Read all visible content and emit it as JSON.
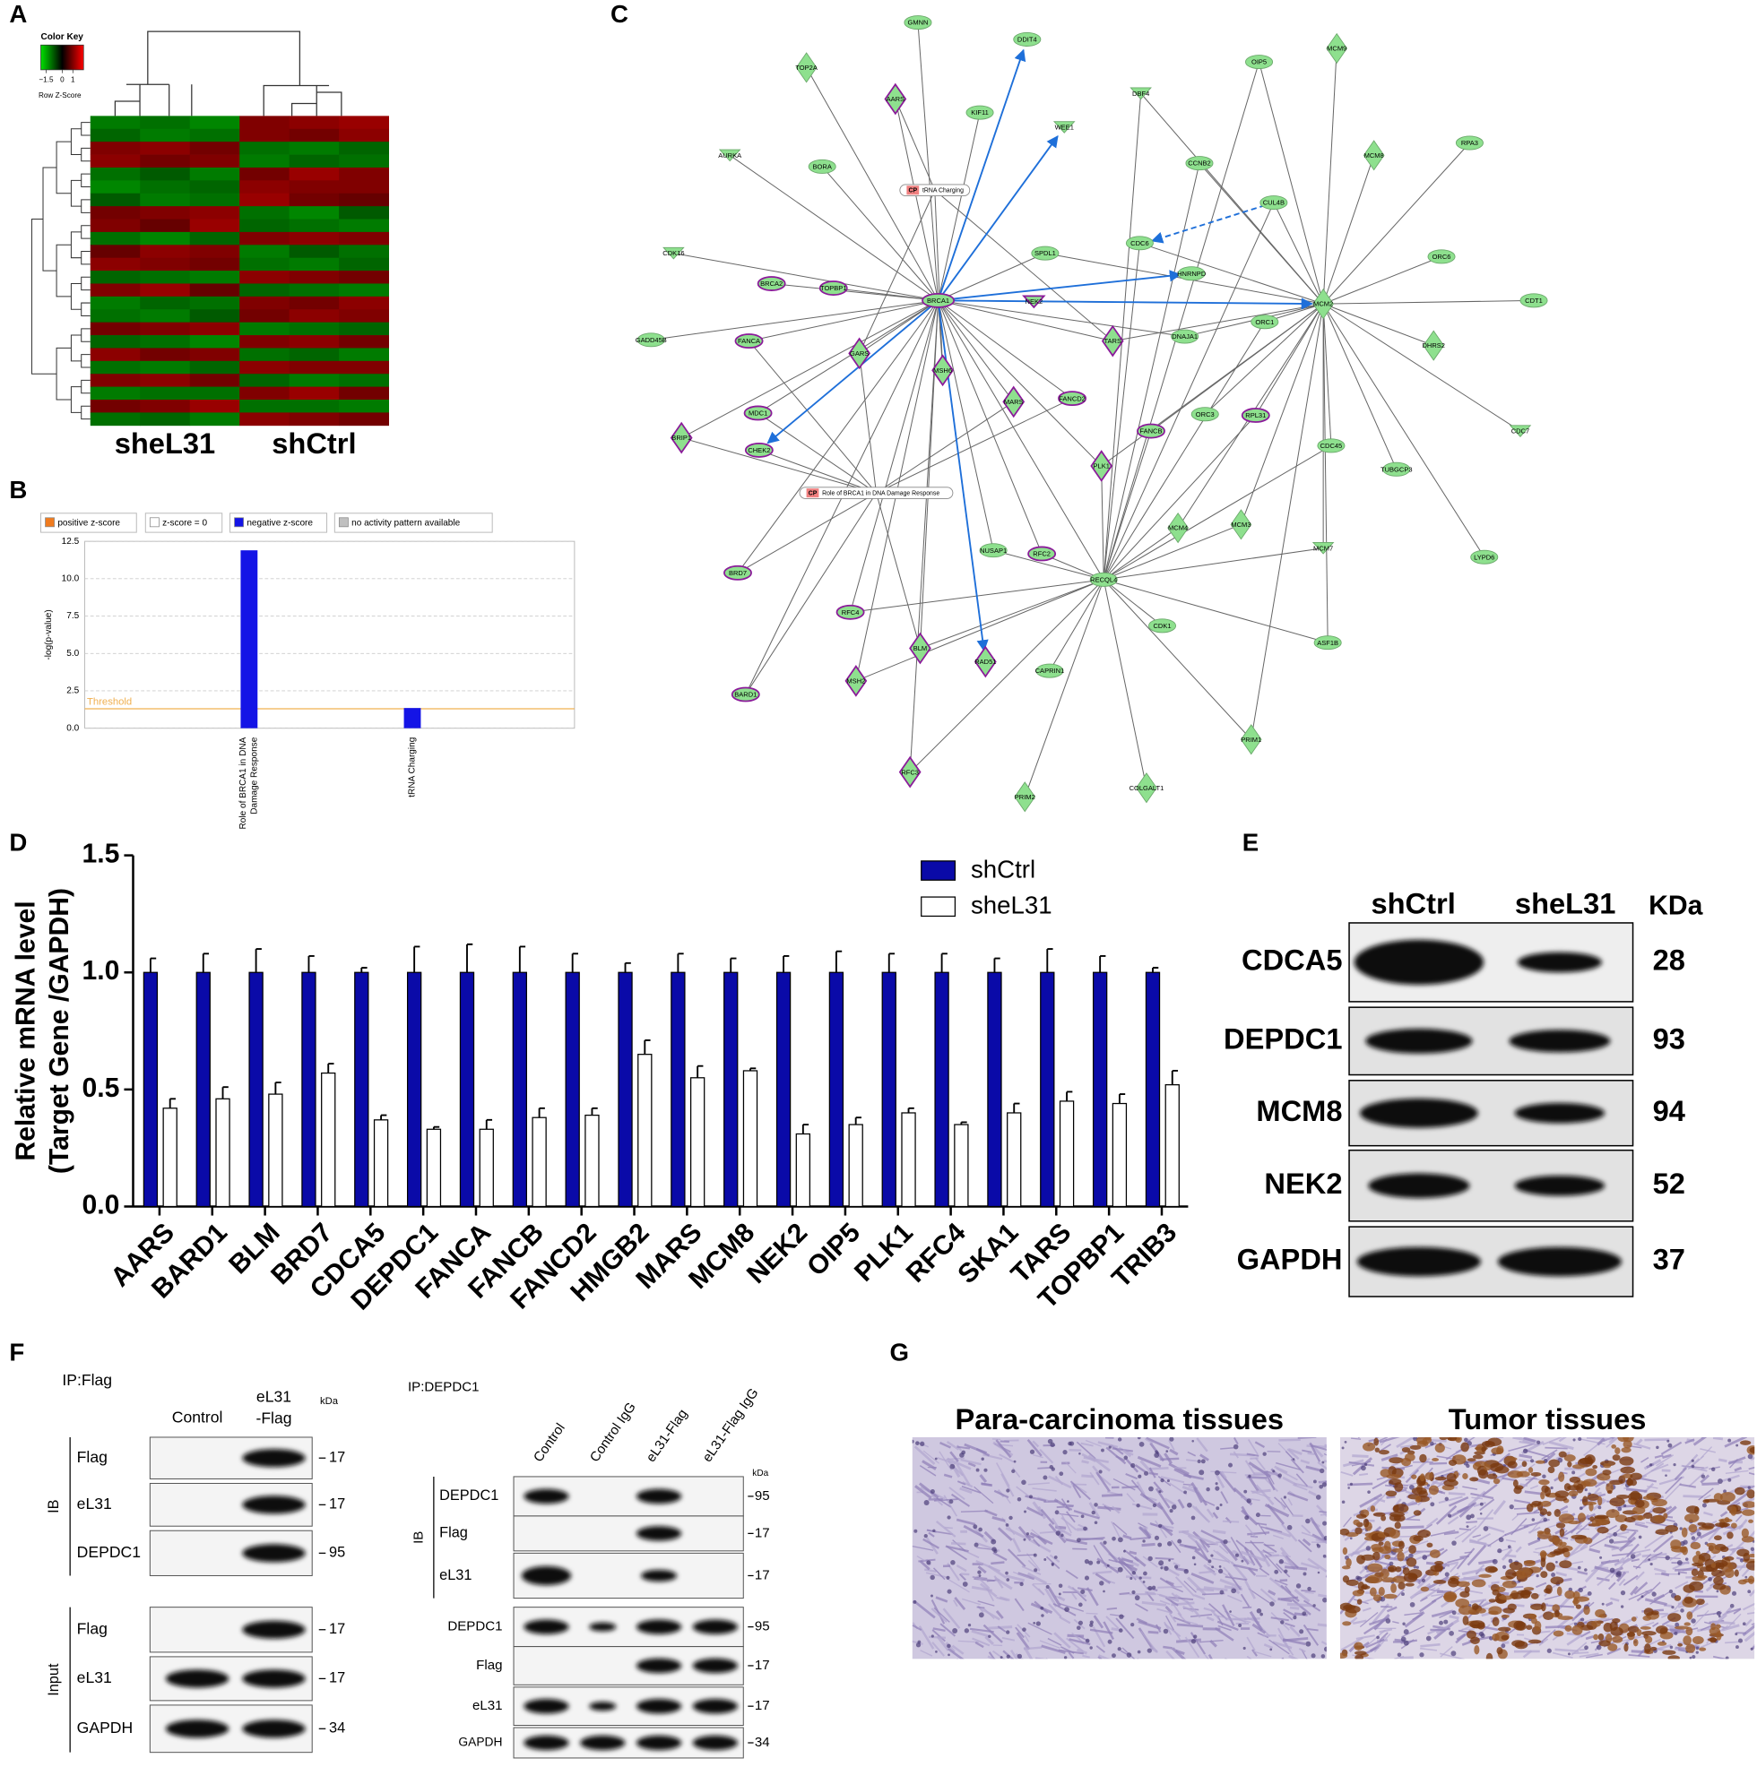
{
  "panel_labels": [
    "A",
    "B",
    "C",
    "D",
    "E",
    "F",
    "G"
  ],
  "chart_data": [
    {
      "type": "heatmap",
      "color_key": {
        "title": "Color Key",
        "label": "Row Z-Score",
        "xlim": [
          -2,
          2
        ],
        "xticks": [
          {
            "value": -1.5,
            "label": "−1.5"
          },
          0,
          1
        ],
        "colors": [
          "#00e000",
          "#000000",
          "#ff0000"
        ]
      },
      "column_groups": [
        "sheL31",
        "shCtrl"
      ],
      "values": [
        [
          -1.1,
          -1.0,
          -1.2,
          1.0,
          1.1,
          1.2
        ],
        [
          -0.9,
          -1.1,
          -1.0,
          1.0,
          0.9,
          1.1
        ],
        [
          1.0,
          1.1,
          0.9,
          -1.0,
          -1.1,
          -0.9
        ],
        [
          1.1,
          0.9,
          1.0,
          -1.1,
          -0.9,
          -1.0
        ],
        [
          -1.0,
          -0.8,
          -1.1,
          0.9,
          1.2,
          1.0
        ],
        [
          -1.2,
          -1.0,
          -0.9,
          1.1,
          1.0,
          1.0
        ],
        [
          -0.8,
          -1.1,
          -1.0,
          1.2,
          0.9,
          0.8
        ],
        [
          0.9,
          1.0,
          1.1,
          -1.0,
          -1.2,
          -0.8
        ],
        [
          1.0,
          0.8,
          1.2,
          -0.9,
          -1.0,
          -1.1
        ],
        [
          -1.0,
          -1.2,
          -0.9,
          1.0,
          1.1,
          1.0
        ],
        [
          0.8,
          1.1,
          1.0,
          -1.1,
          -0.8,
          -1.0
        ],
        [
          1.1,
          1.0,
          0.9,
          -1.0,
          -1.1,
          -0.9
        ],
        [
          -0.9,
          -1.0,
          -1.1,
          1.1,
          1.0,
          0.9
        ],
        [
          1.0,
          1.2,
          0.8,
          -0.9,
          -1.0,
          -1.1
        ],
        [
          -1.1,
          -0.9,
          -1.0,
          1.0,
          0.9,
          1.1
        ],
        [
          -1.0,
          -1.1,
          -0.8,
          0.9,
          1.1,
          1.0
        ],
        [
          0.9,
          1.0,
          1.1,
          -1.1,
          -1.0,
          -0.9
        ],
        [
          -0.9,
          -1.0,
          -1.2,
          1.0,
          1.1,
          0.9
        ],
        [
          1.1,
          0.9,
          1.0,
          -1.0,
          -0.9,
          -1.1
        ],
        [
          -1.0,
          -1.1,
          -0.9,
          1.1,
          1.0,
          1.0
        ],
        [
          1.0,
          1.1,
          0.9,
          -0.9,
          -1.1,
          -1.0
        ],
        [
          -1.1,
          -1.0,
          -1.0,
          1.0,
          1.2,
          0.9
        ],
        [
          0.9,
          1.0,
          1.2,
          -1.0,
          -1.0,
          -1.1
        ],
        [
          -1.0,
          -0.9,
          -1.1,
          1.1,
          1.0,
          0.9
        ]
      ]
    },
    {
      "type": "bar",
      "legend": [
        {
          "name": "positive z-score",
          "color": "#f07b1e"
        },
        {
          "name": "z-score = 0",
          "color": "#ffffff"
        },
        {
          "name": "negative z-score",
          "color": "#1414e6"
        },
        {
          "name": "no activity pattern available",
          "color": "#c0c0c0"
        }
      ],
      "ylabel": "-log(p-value)",
      "categories": [
        "Role of BRCA1 in DNA Damage Response",
        "tRNA Charging"
      ],
      "values": [
        11.9,
        1.35
      ],
      "color": "#1414e6",
      "ylim": [
        0,
        12.5
      ],
      "yticks": [
        {
          "value": 0,
          "label": "0.0"
        },
        2.5,
        {
          "value": 5,
          "label": "5.0"
        },
        7.5,
        {
          "value": 10,
          "label": "10.0"
        },
        12.5
      ],
      "threshold": 1.3,
      "threshold_label": "Threshold",
      "threshold_color": "#f0b050",
      "grid": true
    },
    {
      "type": "grouped-bar",
      "ylabel": [
        "Relative mRNA level",
        "(Target Gene /GAPDH)"
      ],
      "categories": [
        "AARS",
        "BARD1",
        "BLM",
        "BRD7",
        "CDCA5",
        "DEPDC1",
        "FANCA",
        "FANCB",
        "FANCD2",
        "HMGB2",
        "MARS",
        "MCM8",
        "NEK2",
        "OIP5",
        "PLK1",
        "RFC4",
        "SKA1",
        "TARS",
        "TOPBP1",
        "TRIB3"
      ],
      "series": [
        {
          "name": "shCtrl",
          "color": "#0a0aa8",
          "values": [
            1,
            1,
            1,
            1,
            1,
            1,
            1,
            1,
            1,
            1,
            1,
            1,
            1,
            1,
            1,
            1,
            1,
            1,
            1,
            1
          ],
          "errors": [
            0.06,
            0.08,
            0.1,
            0.07,
            0.02,
            0.11,
            0.12,
            0.11,
            0.08,
            0.04,
            0.08,
            0.06,
            0.07,
            0.09,
            0.08,
            0.08,
            0.06,
            0.1,
            0.07,
            0.02
          ]
        },
        {
          "name": "sheL31",
          "color": "#ffffff",
          "values": [
            0.42,
            0.46,
            0.48,
            0.57,
            0.37,
            0.33,
            0.33,
            0.38,
            0.39,
            0.65,
            0.55,
            0.58,
            0.31,
            0.35,
            0.4,
            0.35,
            0.4,
            0.45,
            0.44,
            0.52
          ],
          "errors": [
            0.04,
            0.05,
            0.05,
            0.04,
            0.02,
            0.01,
            0.04,
            0.04,
            0.03,
            0.06,
            0.05,
            0.01,
            0.04,
            0.03,
            0.02,
            0.01,
            0.04,
            0.04,
            0.04,
            0.06
          ]
        }
      ],
      "ylim": [
        0,
        1.5
      ],
      "yticks": [
        {
          "value": 0,
          "label": "0.0"
        },
        0.5,
        {
          "value": 1,
          "label": "1.0"
        },
        1.5
      ]
    }
  ],
  "network": {
    "nodes": [
      "GMNN",
      "DDIT4",
      "TOP2A",
      "OIP5",
      "MCM9",
      "AARS",
      "KIF11",
      "WEE1",
      "DBF4",
      "AURKA",
      "BORA",
      "CCNB2",
      "MCM8",
      "RPA3",
      "CUL4B",
      "CDK16",
      "SPDL1",
      "CDC6",
      "ORC6",
      "BRCA2",
      "TOPBP1",
      "BRCA1",
      "NEK2",
      "HNRNPD",
      "MCM2",
      "CDT1",
      "GADD45B",
      "FANCA",
      "TARS",
      "DNAJA1",
      "ORC1",
      "GARS",
      "DHRS2",
      "MSH6",
      "MARS",
      "FANCD2",
      "MDC1",
      "ORC3",
      "RPL31",
      "BRIP1",
      "FANCB",
      "CDC7",
      "CDC45",
      "CHEK2",
      "PLK1",
      "TUBGCP3",
      "MCM4",
      "MCM3",
      "MCM7",
      "NUSAP1",
      "RFC2",
      "LYPD6",
      "BRD7",
      "RECQL4",
      "RFC4",
      "CDK1",
      "BLM",
      "ASF1B",
      "RAD51",
      "CAPRIN1",
      "MSH2",
      "BARD1",
      "PRIM1",
      "RFC3",
      "COLGALT1",
      "PRIM2"
    ],
    "pathways": [
      {
        "tag": "CP",
        "label": "tRNA Charging"
      },
      {
        "tag": "CP",
        "label": "Role of BRCA1 in DNA Damage Response"
      }
    ]
  },
  "western_blot_e": {
    "columns": [
      "shCtrl",
      "sheL31"
    ],
    "kda_header": "KDa",
    "rows": [
      {
        "label": "CDCA5",
        "kda": 28
      },
      {
        "label": "DEPDC1",
        "kda": 93
      },
      {
        "label": "MCM8",
        "kda": 94
      },
      {
        "label": "NEK2",
        "kda": 52
      },
      {
        "label": "GAPDH",
        "kda": 37
      }
    ]
  },
  "co_ip_f": {
    "left": {
      "title": "IP:Flag",
      "columns": [
        "Control",
        [
          "eL31",
          "-Flag"
        ]
      ],
      "kda_header": "kDa",
      "groups": [
        {
          "label": "IB",
          "rows": [
            {
              "label": "Flag",
              "kda": 17
            },
            {
              "label": "eL31",
              "kda": 17
            },
            {
              "label": "DEPDC1",
              "kda": 95
            }
          ]
        },
        {
          "label": "Input",
          "rows": [
            {
              "label": "Flag",
              "kda": 17
            },
            {
              "label": "eL31",
              "kda": 17
            },
            {
              "label": "GAPDH",
              "kda": 34
            }
          ]
        }
      ]
    },
    "right": {
      "title": "IP:DEPDC1",
      "columns": [
        "Control",
        "Control IgG",
        "eL31-Flag",
        "eL31-Flag IgG"
      ],
      "kda_header": "kDa",
      "groups": [
        {
          "label": "IB",
          "rows": [
            {
              "label": "DEPDC1",
              "kda": 95
            },
            {
              "label": "Flag",
              "kda": 17
            },
            {
              "label": "eL31",
              "kda": 17
            }
          ]
        },
        {
          "rows": [
            {
              "label": "DEPDC1",
              "kda": 95
            },
            {
              "label": "Flag",
              "kda": 17
            },
            {
              "label": "eL31",
              "kda": 17
            },
            {
              "label": "GAPDH",
              "kda": 34
            }
          ]
        }
      ]
    }
  },
  "ihc_g": {
    "panels": [
      {
        "title": "Para-carcinoma tissues"
      },
      {
        "title": "Tumor tissues"
      }
    ]
  }
}
